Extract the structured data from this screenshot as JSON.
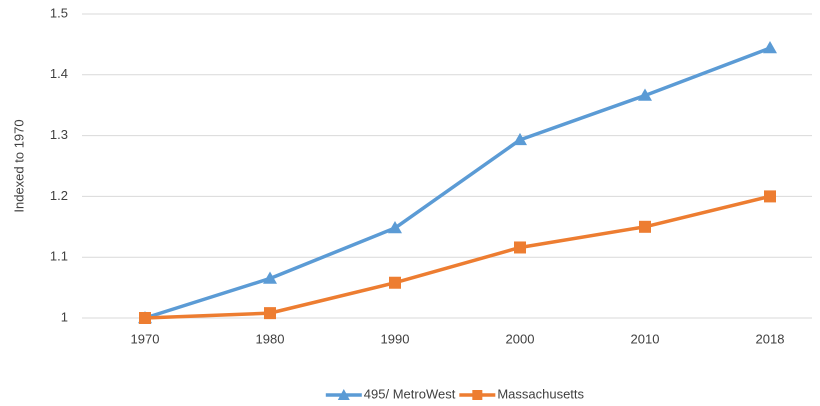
{
  "chart_data": {
    "type": "line",
    "y_label": "Indexed to 1970",
    "categories": [
      "1970",
      "1980",
      "1990",
      "2000",
      "2010",
      "2018"
    ],
    "series": [
      {
        "name": "495/ MetroWest",
        "color": "#5b9bd5",
        "marker": "triangle",
        "values": [
          1,
          1.065,
          1.148,
          1.293,
          1.366,
          1.444
        ]
      },
      {
        "name": "Massachusetts",
        "color": "#ed7d31",
        "marker": "square",
        "values": [
          1,
          1.008,
          1.058,
          1.116,
          1.15,
          1.2
        ]
      }
    ],
    "ylim": [
      1,
      1.5
    ],
    "yticks": [
      1,
      1.1,
      1.2,
      1.3,
      1.4,
      1.5
    ],
    "grid": true,
    "legend": "bottom"
  }
}
